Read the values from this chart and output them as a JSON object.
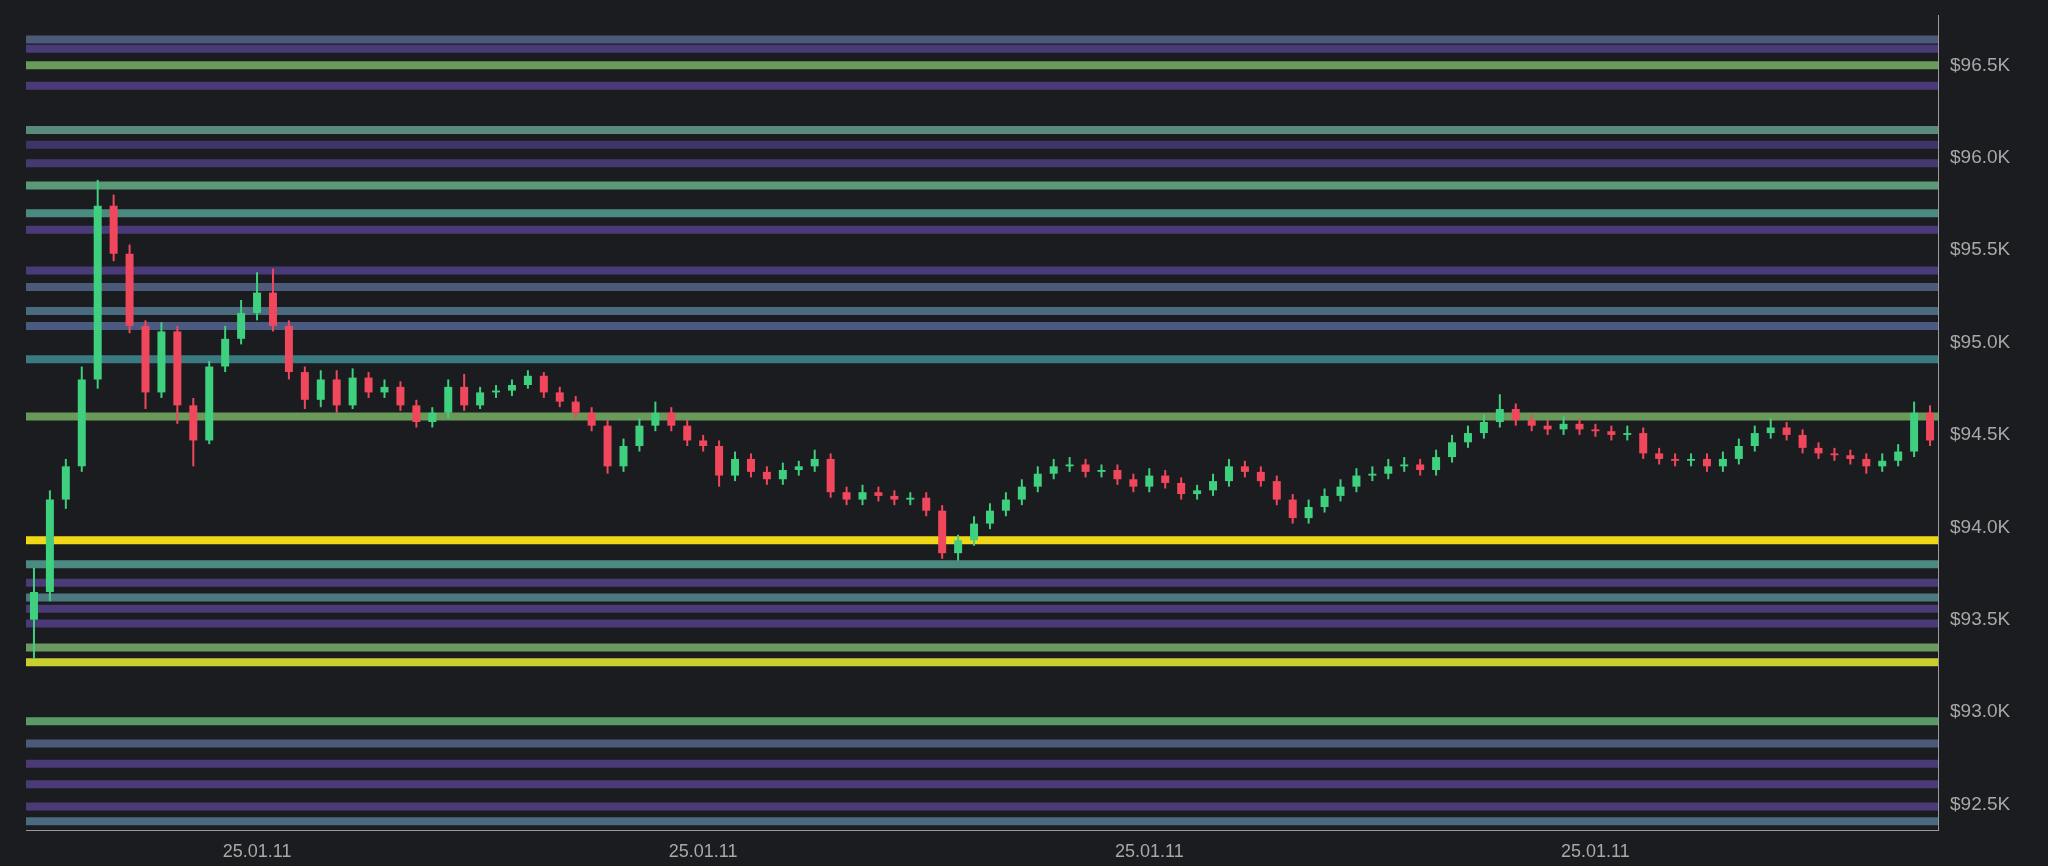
{
  "chart_data": {
    "type": "candlestick",
    "categories": [
      null,
      null,
      null,
      null,
      null,
      null,
      null,
      null,
      null,
      null,
      null,
      null,
      null,
      null,
      "25.01.11",
      null,
      null,
      null,
      null,
      null,
      null,
      null,
      null,
      null,
      null,
      null,
      null,
      null,
      null,
      null,
      null,
      null,
      null,
      null,
      null,
      null,
      null,
      null,
      null,
      null,
      null,
      null,
      "25.01.11",
      null,
      null,
      null,
      null,
      null,
      null,
      null,
      null,
      null,
      null,
      null,
      null,
      null,
      null,
      null,
      null,
      null,
      null,
      null,
      null,
      null,
      null,
      null,
      null,
      null,
      null,
      null,
      "25.01.11",
      null,
      null,
      null,
      null,
      null,
      null,
      null,
      null,
      null,
      null,
      null,
      null,
      null,
      null,
      null,
      null,
      null,
      null,
      null,
      null,
      null,
      null,
      null,
      null,
      null,
      null,
      null,
      "25.01.11",
      null,
      null,
      null,
      null,
      null,
      null,
      null,
      null,
      null,
      null,
      null,
      null,
      null,
      null,
      null,
      null,
      null,
      null,
      null,
      null,
      null
    ],
    "ohlc": [
      [
        93500,
        93780,
        93290,
        93650
      ],
      [
        93650,
        94200,
        93600,
        94150
      ],
      [
        94150,
        94370,
        94100,
        94330
      ],
      [
        94330,
        94870,
        94300,
        94800
      ],
      [
        94800,
        95880,
        94750,
        95740
      ],
      [
        95740,
        95800,
        95440,
        95480
      ],
      [
        95480,
        95530,
        95050,
        95090
      ],
      [
        95090,
        95120,
        94640,
        94730
      ],
      [
        94730,
        95110,
        94700,
        95060
      ],
      [
        95060,
        95090,
        94560,
        94660
      ],
      [
        94660,
        94700,
        94330,
        94470
      ],
      [
        94470,
        94900,
        94450,
        94870
      ],
      [
        94870,
        95090,
        94840,
        95020
      ],
      [
        95020,
        95230,
        94990,
        95160
      ],
      [
        95160,
        95380,
        95120,
        95270
      ],
      [
        95270,
        95400,
        95060,
        95090
      ],
      [
        95090,
        95120,
        94800,
        94840
      ],
      [
        94840,
        94870,
        94640,
        94690
      ],
      [
        94690,
        94850,
        94650,
        94800
      ],
      [
        94800,
        94850,
        94620,
        94660
      ],
      [
        94660,
        94860,
        94640,
        94810
      ],
      [
        94810,
        94840,
        94700,
        94730
      ],
      [
        94730,
        94800,
        94700,
        94760
      ],
      [
        94760,
        94790,
        94630,
        94660
      ],
      [
        94660,
        94690,
        94540,
        94570
      ],
      [
        94570,
        94650,
        94540,
        94620
      ],
      [
        94620,
        94800,
        94590,
        94760
      ],
      [
        94760,
        94830,
        94630,
        94660
      ],
      [
        94660,
        94760,
        94640,
        94730
      ],
      [
        94730,
        94770,
        94700,
        94740
      ],
      [
        94740,
        94800,
        94710,
        94770
      ],
      [
        94770,
        94850,
        94750,
        94820
      ],
      [
        94820,
        94840,
        94700,
        94730
      ],
      [
        94730,
        94760,
        94650,
        94680
      ],
      [
        94680,
        94710,
        94590,
        94620
      ],
      [
        94620,
        94650,
        94520,
        94550
      ],
      [
        94550,
        94580,
        94290,
        94330
      ],
      [
        94330,
        94480,
        94300,
        94440
      ],
      [
        94440,
        94590,
        94410,
        94550
      ],
      [
        94550,
        94680,
        94520,
        94620
      ],
      [
        94620,
        94650,
        94520,
        94550
      ],
      [
        94550,
        94580,
        94440,
        94470
      ],
      [
        94470,
        94500,
        94410,
        94440
      ],
      [
        94440,
        94470,
        94220,
        94280
      ],
      [
        94280,
        94410,
        94250,
        94370
      ],
      [
        94370,
        94400,
        94270,
        94300
      ],
      [
        94300,
        94330,
        94230,
        94260
      ],
      [
        94260,
        94350,
        94230,
        94310
      ],
      [
        94310,
        94360,
        94280,
        94330
      ],
      [
        94330,
        94420,
        94300,
        94370
      ],
      [
        94370,
        94400,
        94160,
        94190
      ],
      [
        94190,
        94220,
        94120,
        94150
      ],
      [
        94150,
        94230,
        94120,
        94190
      ],
      [
        94190,
        94220,
        94140,
        94170
      ],
      [
        94170,
        94200,
        94120,
        94150
      ],
      [
        94150,
        94190,
        94120,
        94160
      ],
      [
        94160,
        94190,
        94060,
        94090
      ],
      [
        94090,
        94120,
        93830,
        93860
      ],
      [
        93860,
        93960,
        93820,
        93930
      ],
      [
        93930,
        94060,
        93900,
        94020
      ],
      [
        94020,
        94130,
        93990,
        94090
      ],
      [
        94090,
        94190,
        94060,
        94150
      ],
      [
        94150,
        94260,
        94120,
        94220
      ],
      [
        94220,
        94330,
        94190,
        94290
      ],
      [
        94290,
        94370,
        94260,
        94330
      ],
      [
        94330,
        94380,
        94300,
        94340
      ],
      [
        94340,
        94370,
        94270,
        94300
      ],
      [
        94300,
        94340,
        94270,
        94310
      ],
      [
        94310,
        94340,
        94230,
        94260
      ],
      [
        94260,
        94290,
        94190,
        94220
      ],
      [
        94220,
        94320,
        94190,
        94280
      ],
      [
        94280,
        94310,
        94210,
        94240
      ],
      [
        94240,
        94270,
        94150,
        94180
      ],
      [
        94180,
        94230,
        94150,
        94200
      ],
      [
        94200,
        94290,
        94170,
        94250
      ],
      [
        94250,
        94370,
        94220,
        94330
      ],
      [
        94330,
        94360,
        94270,
        94300
      ],
      [
        94300,
        94330,
        94220,
        94250
      ],
      [
        94250,
        94280,
        94120,
        94150
      ],
      [
        94150,
        94180,
        94020,
        94050
      ],
      [
        94050,
        94150,
        94020,
        94110
      ],
      [
        94110,
        94210,
        94080,
        94170
      ],
      [
        94170,
        94260,
        94140,
        94220
      ],
      [
        94220,
        94320,
        94190,
        94280
      ],
      [
        94280,
        94330,
        94250,
        94290
      ],
      [
        94290,
        94370,
        94260,
        94330
      ],
      [
        94330,
        94380,
        94300,
        94340
      ],
      [
        94340,
        94370,
        94280,
        94310
      ],
      [
        94310,
        94420,
        94280,
        94380
      ],
      [
        94380,
        94500,
        94350,
        94460
      ],
      [
        94460,
        94550,
        94430,
        94510
      ],
      [
        94510,
        94610,
        94480,
        94570
      ],
      [
        94570,
        94720,
        94540,
        94640
      ],
      [
        94640,
        94670,
        94550,
        94580
      ],
      [
        94580,
        94610,
        94520,
        94550
      ],
      [
        94550,
        94580,
        94500,
        94530
      ],
      [
        94530,
        94600,
        94500,
        94560
      ],
      [
        94560,
        94590,
        94500,
        94530
      ],
      [
        94530,
        94560,
        94490,
        94520
      ],
      [
        94520,
        94550,
        94470,
        94500
      ],
      [
        94500,
        94550,
        94470,
        94510
      ],
      [
        94510,
        94540,
        94370,
        94400
      ],
      [
        94400,
        94430,
        94340,
        94370
      ],
      [
        94370,
        94400,
        94330,
        94360
      ],
      [
        94360,
        94400,
        94330,
        94370
      ],
      [
        94370,
        94400,
        94300,
        94330
      ],
      [
        94330,
        94410,
        94300,
        94370
      ],
      [
        94370,
        94480,
        94340,
        94440
      ],
      [
        94440,
        94550,
        94410,
        94510
      ],
      [
        94510,
        94590,
        94480,
        94540
      ],
      [
        94540,
        94570,
        94470,
        94500
      ],
      [
        94500,
        94530,
        94400,
        94430
      ],
      [
        94430,
        94460,
        94370,
        94400
      ],
      [
        94400,
        94430,
        94360,
        94390
      ],
      [
        94390,
        94420,
        94340,
        94370
      ],
      [
        94370,
        94400,
        94290,
        94330
      ],
      [
        94330,
        94400,
        94300,
        94360
      ],
      [
        94360,
        94450,
        94330,
        94410
      ],
      [
        94410,
        94680,
        94380,
        94620
      ],
      [
        94620,
        94660,
        94440,
        94470
      ]
    ],
    "ylim": [
      92360,
      96770
    ],
    "yticks": [
      {
        "value": 92500,
        "label": "$92.5K"
      },
      {
        "value": 93000,
        "label": "$93.0K"
      },
      {
        "value": 93500,
        "label": "$93.5K"
      },
      {
        "value": 94000,
        "label": "$94.0K"
      },
      {
        "value": 94500,
        "label": "$94.5K"
      },
      {
        "value": 95000,
        "label": "$95.0K"
      },
      {
        "value": 95500,
        "label": "$95.5K"
      },
      {
        "value": 96000,
        "label": "$96.0K"
      },
      {
        "value": 96500,
        "label": "$96.5K"
      }
    ],
    "ref_lines": [
      {
        "axis": "y",
        "value": 96640,
        "color": "#4a5a78"
      },
      {
        "axis": "y",
        "value": 96590,
        "color": "#4a3a78"
      },
      {
        "axis": "y",
        "value": 96500,
        "color": "#6a9a5a"
      },
      {
        "axis": "y",
        "value": 96390,
        "color": "#4a3a78"
      },
      {
        "axis": "y",
        "value": 96150,
        "color": "#5a8a7a"
      },
      {
        "axis": "y",
        "value": 96070,
        "color": "#3f3468"
      },
      {
        "axis": "y",
        "value": 95970,
        "color": "#453a70"
      },
      {
        "axis": "y",
        "value": 95850,
        "color": "#5a9a78"
      },
      {
        "axis": "y",
        "value": 95700,
        "color": "#4a8a80"
      },
      {
        "axis": "y",
        "value": 95610,
        "color": "#4a3a78"
      },
      {
        "axis": "y",
        "value": 95390,
        "color": "#4a3a78"
      },
      {
        "axis": "y",
        "value": 95300,
        "color": "#4a5a78"
      },
      {
        "axis": "y",
        "value": 95170,
        "color": "#4a6a80"
      },
      {
        "axis": "y",
        "value": 95090,
        "color": "#4a5a80"
      },
      {
        "axis": "y",
        "value": 94910,
        "color": "#3a7a80"
      },
      {
        "axis": "y",
        "value": 94600,
        "color": "#6a9a5a"
      },
      {
        "axis": "y",
        "value": 93930,
        "color": "#f0d818"
      },
      {
        "axis": "y",
        "value": 93800,
        "color": "#4a8a80"
      },
      {
        "axis": "y",
        "value": 93700,
        "color": "#4a3a78"
      },
      {
        "axis": "y",
        "value": 93620,
        "color": "#4a7a80"
      },
      {
        "axis": "y",
        "value": 93560,
        "color": "#4a3a78"
      },
      {
        "axis": "y",
        "value": 93480,
        "color": "#4a3a78"
      },
      {
        "axis": "y",
        "value": 93350,
        "color": "#6a9a60"
      },
      {
        "axis": "y",
        "value": 93270,
        "color": "#c8d030"
      },
      {
        "axis": "y",
        "value": 92950,
        "color": "#5a9a6a"
      },
      {
        "axis": "y",
        "value": 92830,
        "color": "#4a5a78"
      },
      {
        "axis": "y",
        "value": 92720,
        "color": "#4a3a78"
      },
      {
        "axis": "y",
        "value": 92610,
        "color": "#4a3a78"
      },
      {
        "axis": "y",
        "value": 92490,
        "color": "#4a3a78"
      },
      {
        "axis": "y",
        "value": 92410,
        "color": "#4a6a80"
      }
    ]
  }
}
